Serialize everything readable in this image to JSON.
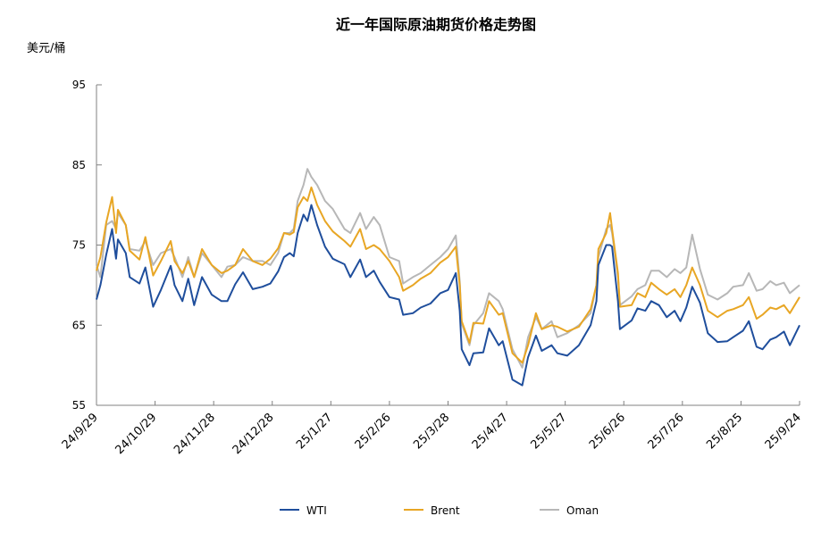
{
  "chart_data": {
    "type": "line",
    "title": "近一年国际原油期货价格走势图",
    "ylabel": "美元/桶",
    "xlabel": "",
    "ylim": [
      55,
      95
    ],
    "yticks": [
      55,
      65,
      75,
      85,
      95
    ],
    "xlim": [
      "2024-09-29",
      "2025-09-24"
    ],
    "xticks": [
      {
        "date": "2024-09-29",
        "label": "24/9/29"
      },
      {
        "date": "2024-10-29",
        "label": "24/10/29"
      },
      {
        "date": "2024-11-28",
        "label": "24/11/28"
      },
      {
        "date": "2024-12-28",
        "label": "24/12/28"
      },
      {
        "date": "2025-01-27",
        "label": "25/1/27"
      },
      {
        "date": "2025-02-26",
        "label": "25/2/26"
      },
      {
        "date": "2025-03-28",
        "label": "25/3/28"
      },
      {
        "date": "2025-04-27",
        "label": "25/4/27"
      },
      {
        "date": "2025-05-27",
        "label": "25/5/27"
      },
      {
        "date": "2025-06-26",
        "label": "25/6/26"
      },
      {
        "date": "2025-07-26",
        "label": "25/7/26"
      },
      {
        "date": "2025-08-25",
        "label": "25/8/25"
      },
      {
        "date": "2025-09-24",
        "label": "25/9/24"
      }
    ],
    "grid": false,
    "legend": "bottom",
    "x": [
      "2024-09-29",
      "2024-10-01",
      "2024-10-04",
      "2024-10-07",
      "2024-10-09",
      "2024-10-10",
      "2024-10-14",
      "2024-10-16",
      "2024-10-21",
      "2024-10-24",
      "2024-10-28",
      "2024-11-01",
      "2024-11-06",
      "2024-11-08",
      "2024-11-12",
      "2024-11-15",
      "2024-11-18",
      "2024-11-22",
      "2024-11-27",
      "2024-12-02",
      "2024-12-05",
      "2024-12-09",
      "2024-12-13",
      "2024-12-18",
      "2024-12-23",
      "2024-12-27",
      "2024-12-31",
      "2025-01-03",
      "2025-01-06",
      "2025-01-08",
      "2025-01-10",
      "2025-01-13",
      "2025-01-15",
      "2025-01-17",
      "2025-01-20",
      "2025-01-24",
      "2025-01-28",
      "2025-02-03",
      "2025-02-06",
      "2025-02-11",
      "2025-02-14",
      "2025-02-18",
      "2025-02-21",
      "2025-02-26",
      "2025-03-03",
      "2025-03-05",
      "2025-03-10",
      "2025-03-14",
      "2025-03-19",
      "2025-03-24",
      "2025-03-28",
      "2025-04-01",
      "2025-04-03",
      "2025-04-04",
      "2025-04-08",
      "2025-04-10",
      "2025-04-15",
      "2025-04-18",
      "2025-04-23",
      "2025-04-25",
      "2025-04-30",
      "2025-05-05",
      "2025-05-08",
      "2025-05-12",
      "2025-05-15",
      "2025-05-20",
      "2025-05-23",
      "2025-05-28",
      "2025-06-03",
      "2025-06-09",
      "2025-06-12",
      "2025-06-13",
      "2025-06-17",
      "2025-06-19",
      "2025-06-20",
      "2025-06-23",
      "2025-06-24",
      "2025-06-30",
      "2025-07-03",
      "2025-07-07",
      "2025-07-10",
      "2025-07-14",
      "2025-07-18",
      "2025-07-22",
      "2025-07-25",
      "2025-07-28",
      "2025-07-31",
      "2025-08-04",
      "2025-08-08",
      "2025-08-13",
      "2025-08-18",
      "2025-08-21",
      "2025-08-26",
      "2025-08-29",
      "2025-09-02",
      "2025-09-05",
      "2025-09-09",
      "2025-09-12",
      "2025-09-16",
      "2025-09-19",
      "2025-09-24"
    ],
    "series": [
      {
        "name": "WTI",
        "color": "#1f4e9c",
        "values": [
          68.2,
          70,
          73.8,
          77,
          73.3,
          75.7,
          74,
          71,
          70.2,
          72.2,
          67.3,
          69.4,
          72.4,
          70,
          68,
          70.8,
          67.5,
          71,
          68.8,
          68,
          68,
          70.1,
          71.6,
          69.5,
          69.8,
          70.2,
          71.7,
          73.5,
          74,
          73.6,
          76.5,
          78.8,
          78,
          80,
          77.5,
          74.8,
          73.3,
          72.6,
          71,
          73.2,
          71,
          71.8,
          70.4,
          68.5,
          68.2,
          66.3,
          66.5,
          67.2,
          67.7,
          69,
          69.4,
          71.5,
          66.8,
          62,
          60,
          61.5,
          61.6,
          64.6,
          62.5,
          63,
          58.2,
          57.5,
          61,
          63.7,
          61.8,
          62.5,
          61.5,
          61.2,
          62.5,
          65,
          68,
          72.5,
          75,
          75,
          74.8,
          68,
          64.5,
          65.6,
          67.1,
          66.8,
          68,
          67.5,
          66,
          66.8,
          65.5,
          67.2,
          69.8,
          67.8,
          64,
          62.9,
          63,
          63.5,
          64.3,
          65.5,
          62.3,
          62,
          63.2,
          63.5,
          64.2,
          62.5,
          65
        ]
      },
      {
        "name": "Brent",
        "color": "#e8a624",
        "values": [
          71.8,
          73.5,
          77.8,
          81,
          76.5,
          79.4,
          77.5,
          74.3,
          73.2,
          76,
          71.2,
          73,
          75.5,
          73,
          71.5,
          73,
          71,
          74.5,
          72.5,
          71.5,
          71.8,
          72.5,
          74.5,
          73,
          72.5,
          73.3,
          74.6,
          76.5,
          76.3,
          76.6,
          79.7,
          81,
          80.5,
          82.2,
          80,
          78,
          76.7,
          75.5,
          74.8,
          77,
          74.5,
          75,
          74.5,
          73,
          71,
          69.3,
          70,
          70.8,
          71.5,
          72.8,
          73.5,
          74.8,
          70,
          65.5,
          62.8,
          65.3,
          65.2,
          68,
          66.3,
          66.5,
          61.5,
          60.3,
          62.5,
          66.5,
          64.5,
          65,
          64.8,
          64.2,
          64.8,
          67,
          70,
          74.5,
          76.5,
          79,
          77,
          71.5,
          67.3,
          67.5,
          69,
          68.5,
          70.3,
          69.5,
          68.8,
          69.5,
          68.5,
          70,
          72.2,
          70,
          66.8,
          66,
          66.8,
          67,
          67.5,
          68.5,
          65.8,
          66.3,
          67.2,
          67,
          67.5,
          66.5,
          68.5
        ]
      },
      {
        "name": "Oman",
        "color": "#b7b7b7",
        "values": [
          72.5,
          71,
          77.5,
          78,
          77,
          79,
          77.5,
          74.5,
          74.3,
          75.5,
          72.5,
          74,
          74.5,
          73.5,
          71,
          73.5,
          71,
          74,
          72.5,
          71,
          72.3,
          72.5,
          73.5,
          73,
          73,
          72.5,
          74,
          76.5,
          76.5,
          77,
          80.5,
          82.5,
          84.5,
          83.5,
          82.5,
          80.5,
          79.5,
          77,
          76.5,
          79,
          77,
          78.5,
          77.5,
          73.5,
          73,
          70.2,
          71,
          71.5,
          72.5,
          73.5,
          74.5,
          76.2,
          70.5,
          65.2,
          62.5,
          65,
          66.5,
          69,
          68,
          67,
          62,
          59.7,
          63.5,
          66,
          64.5,
          65.5,
          63.5,
          64,
          65,
          66.5,
          70,
          73.5,
          77,
          77.5,
          76.5,
          71,
          67.5,
          68.6,
          69.5,
          70,
          71.8,
          71.8,
          71,
          72,
          71.5,
          72.2,
          76.3,
          72,
          68.8,
          68.2,
          69,
          69.8,
          70,
          71.5,
          69.3,
          69.5,
          70.5,
          70,
          70.3,
          69,
          70
        ]
      }
    ]
  }
}
